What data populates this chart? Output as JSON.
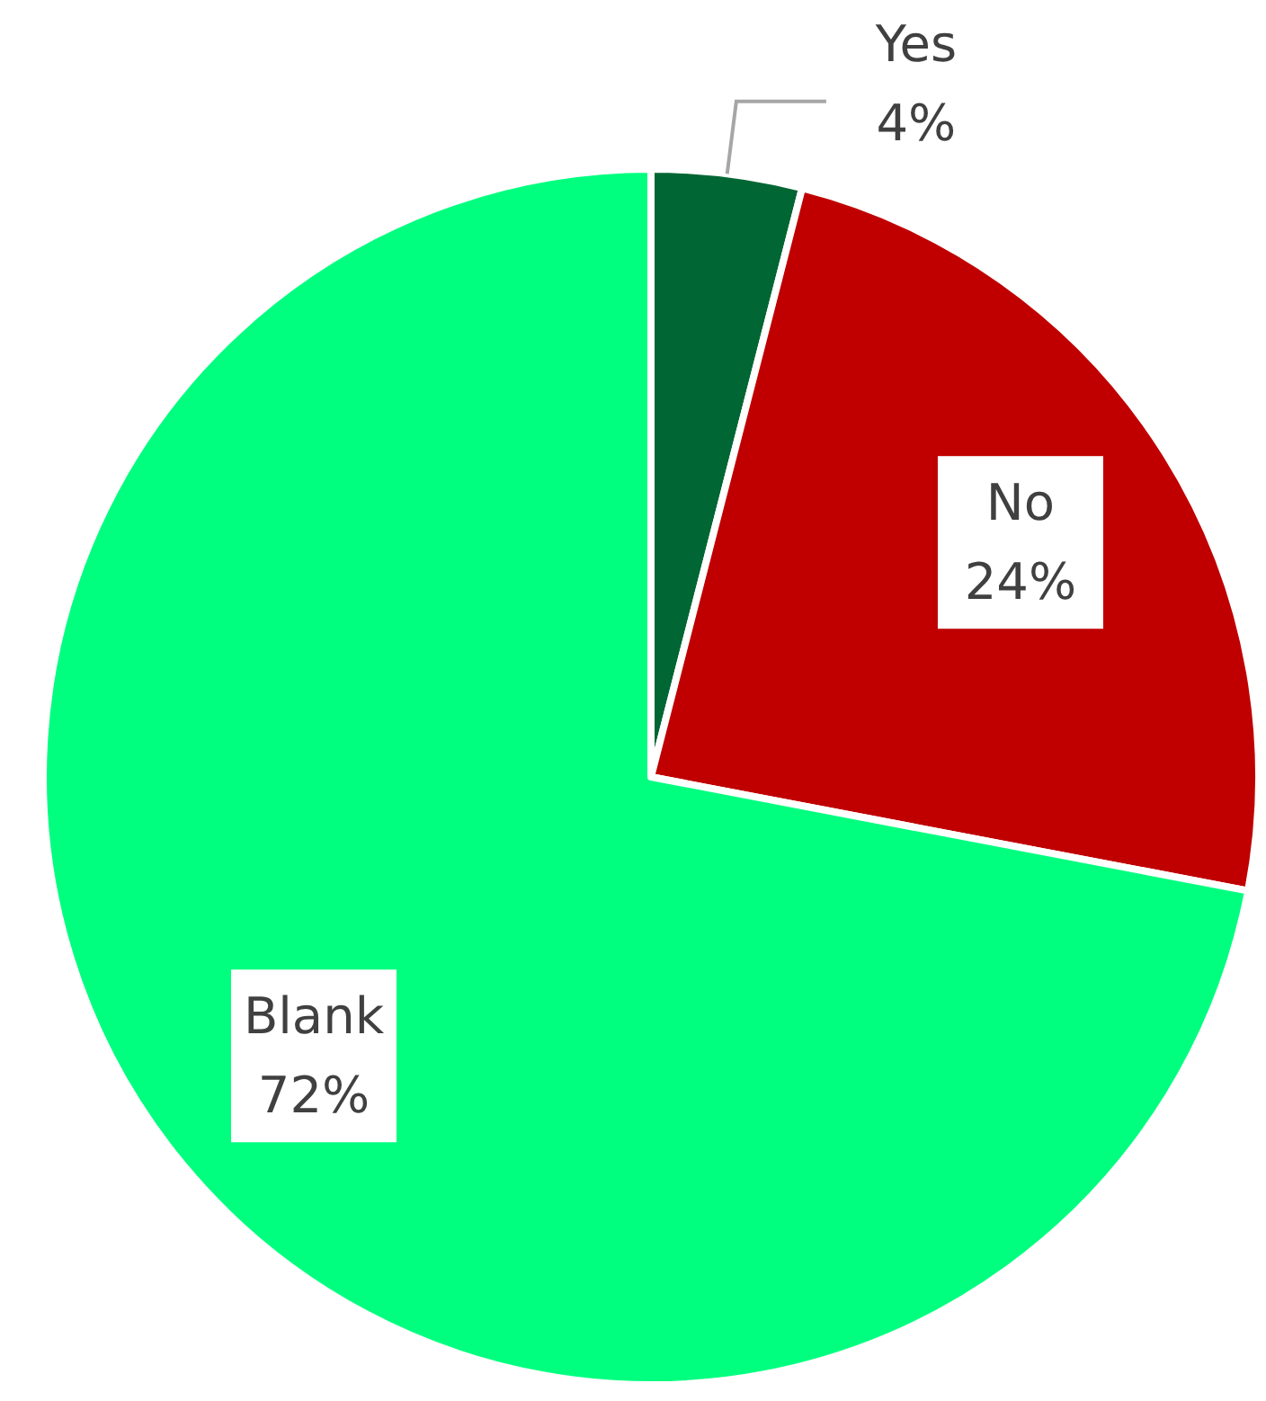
{
  "chart_data": {
    "type": "pie",
    "categories": [
      "Yes",
      "No",
      "Blank"
    ],
    "values": [
      4,
      24,
      72
    ],
    "colors": [
      "#006633",
      "#c00000",
      "#00ff7f"
    ],
    "value_labels": [
      "4%",
      "24%",
      "72%"
    ]
  }
}
